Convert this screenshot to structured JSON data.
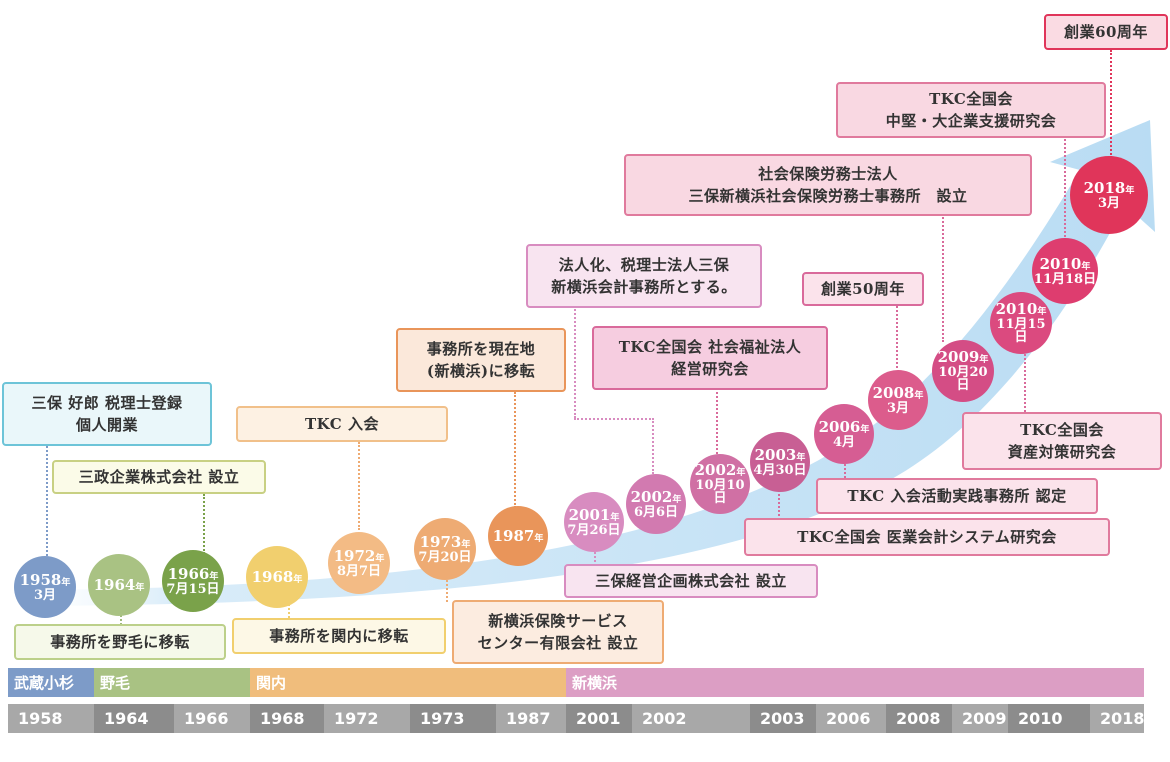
{
  "colors": {
    "arrow": "#cfe6f7",
    "blue": "#7d9bc8",
    "green": "#9fb87c",
    "darkgreen": "#7aa24a",
    "yellow": "#f1cf6e",
    "orange": "#eeab73",
    "orange2": "#e9955a",
    "lilac": "#d88cc0",
    "rose": "#d96a9b",
    "crimson": "#e0355a"
  },
  "milestones": [
    {
      "year": "1958",
      "md": "3月"
    },
    {
      "year": "1964",
      "md": ""
    },
    {
      "year": "1966",
      "md": "7月15日"
    },
    {
      "year": "1968",
      "md": ""
    },
    {
      "year": "1972",
      "md": "8月7日"
    },
    {
      "year": "1973",
      "md": "7月20日"
    },
    {
      "year": "1987",
      "md": ""
    },
    {
      "year": "2001",
      "md": "7月26日"
    },
    {
      "year": "2002",
      "md": "6月6日"
    },
    {
      "year": "2002",
      "md": "10月10日"
    },
    {
      "year": "2003",
      "md": "4月30日"
    },
    {
      "year": "2006",
      "md": "4月"
    },
    {
      "year": "2008",
      "md": "3月"
    },
    {
      "year": "2009",
      "md": "10月20日"
    },
    {
      "year": "2010",
      "md": "11月15日"
    },
    {
      "year": "2010",
      "md": "11月18日"
    },
    {
      "year": "2018",
      "md": "3月"
    }
  ],
  "events": [
    {
      "lines": [
        "三保 好郎 税理士登録",
        "個人開業"
      ]
    },
    {
      "lines": [
        "三政企業株式会社 設立"
      ]
    },
    {
      "lines": [
        "事務所を野毛に移転"
      ]
    },
    {
      "lines": [
        "事務所を関内に移転"
      ]
    },
    {
      "lines": [
        "TKC 入会"
      ]
    },
    {
      "lines": [
        "新横浜保険サービス",
        "センター有限会社 設立"
      ]
    },
    {
      "lines": [
        "事務所を現在地",
        "(新横浜)に移転"
      ]
    },
    {
      "lines": [
        "三保経営企画株式会社 設立"
      ]
    },
    {
      "lines": [
        "法人化、税理士法人三保",
        "新横浜会計事務所とする。"
      ]
    },
    {
      "lines": [
        "TKC全国会 社会福祉法人",
        "経営研究会"
      ]
    },
    {
      "lines": [
        "TKC全国会 医業会計システム研究会"
      ]
    },
    {
      "lines": [
        "TKC 入会活動実践事務所 認定"
      ]
    },
    {
      "lines": [
        "創業50周年"
      ]
    },
    {
      "lines": [
        "社会保険労務士法人",
        "三保新横浜社会保険労務士事務所　設立"
      ]
    },
    {
      "lines": [
        "TKC全国会",
        "資産対策研究会"
      ]
    },
    {
      "lines": [
        "TKC全国会",
        "中堅・大企業支援研究会"
      ]
    },
    {
      "lines": [
        "創業60周年"
      ]
    }
  ],
  "eras": [
    {
      "label": "武蔵小杉",
      "color": "#7d9bc8"
    },
    {
      "label": "野毛",
      "color": "#a9c283"
    },
    {
      "label": "関内",
      "color": "#f0bd7c"
    },
    {
      "label": "新横浜",
      "color": "#dc9ec4"
    }
  ],
  "year_axis": [
    "1958",
    "1964",
    "1966",
    "1968",
    "1972",
    "1973",
    "1987",
    "2001",
    "2002",
    "2003",
    "2006",
    "2008",
    "2009",
    "2010",
    "2018"
  ]
}
